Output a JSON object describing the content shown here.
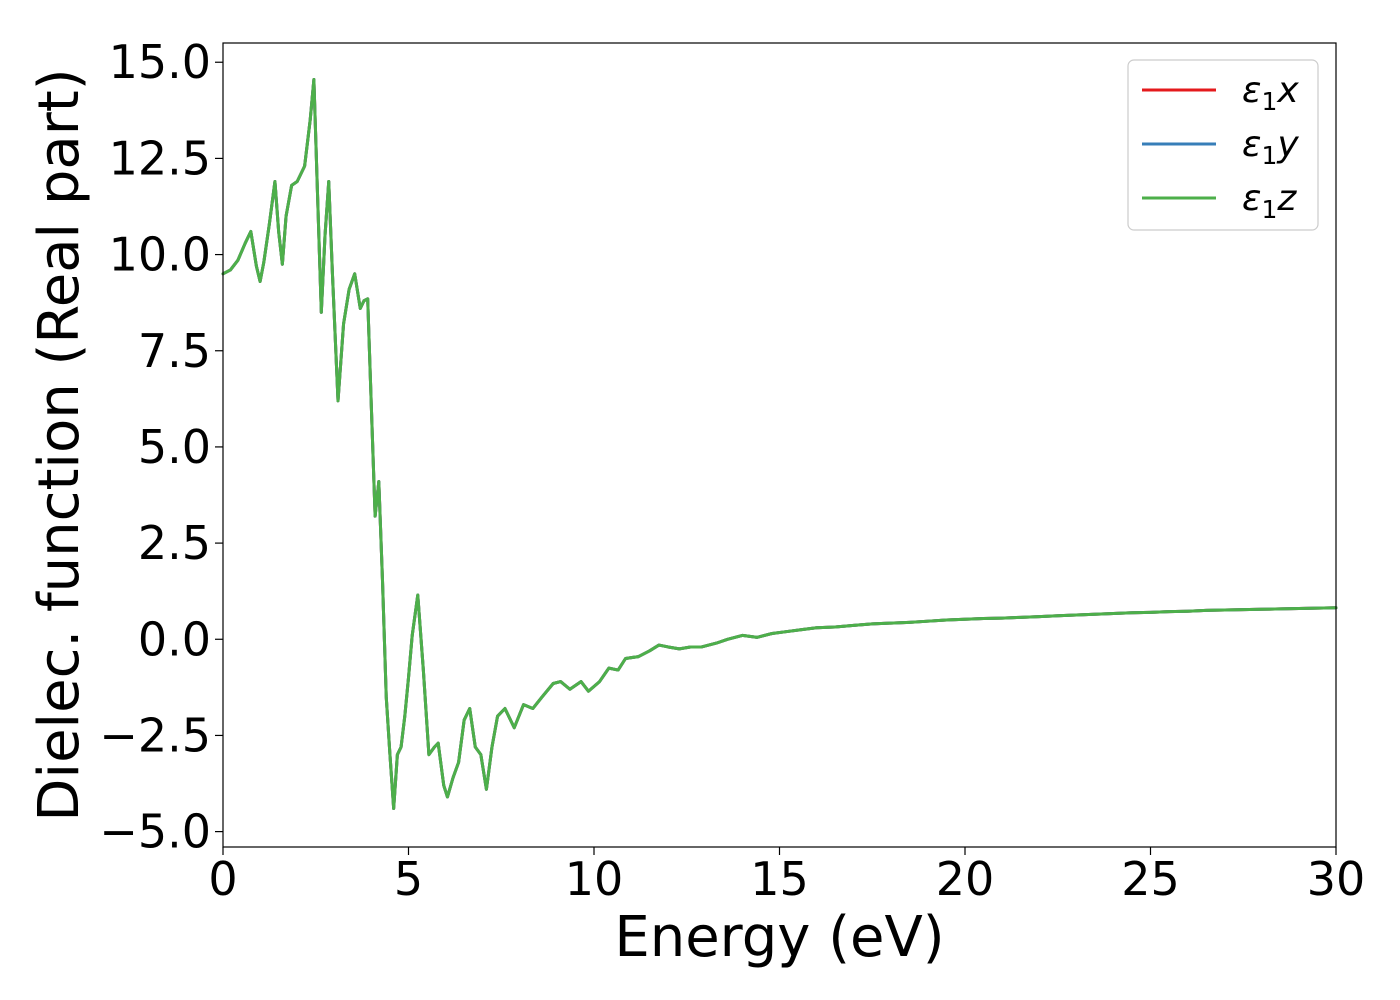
{
  "chart_data": {
    "type": "line",
    "xlabel": "Energy (eV)",
    "ylabel": "Dielec. function (Real part)",
    "xlim": [
      0,
      30
    ],
    "ylim": [
      -5.4,
      15.5
    ],
    "xticks": [
      0,
      5,
      10,
      15,
      20,
      25,
      30
    ],
    "xtick_labels": [
      "0",
      "5",
      "10",
      "15",
      "20",
      "25",
      "30"
    ],
    "yticks": [
      -5.0,
      -2.5,
      0.0,
      2.5,
      5.0,
      7.5,
      10.0,
      12.5,
      15.0
    ],
    "ytick_labels": [
      "−5.0",
      "−2.5",
      "0.0",
      "2.5",
      "5.0",
      "7.5",
      "10.0",
      "12.5",
      "15.0"
    ],
    "grid": false,
    "legend_position": "top-right",
    "legend": [
      {
        "symbol": "ε",
        "sub": "1",
        "axis": "x"
      },
      {
        "symbol": "ε",
        "sub": "1",
        "axis": "y"
      },
      {
        "symbol": "ε",
        "sub": "1",
        "axis": "z"
      }
    ],
    "colors": [
      "#e41a1c",
      "#377eb8",
      "#4daf4a"
    ],
    "x": [
      0,
      0.2,
      0.4,
      0.6,
      0.75,
      0.9,
      1.0,
      1.1,
      1.25,
      1.4,
      1.5,
      1.6,
      1.7,
      1.85,
      2.0,
      2.2,
      2.35,
      2.45,
      2.55,
      2.65,
      2.75,
      2.85,
      2.95,
      3.1,
      3.25,
      3.4,
      3.55,
      3.7,
      3.8,
      3.9,
      4.0,
      4.1,
      4.2,
      4.3,
      4.4,
      4.5,
      4.6,
      4.7,
      4.8,
      4.9,
      5.0,
      5.1,
      5.25,
      5.4,
      5.55,
      5.7,
      5.8,
      5.95,
      6.05,
      6.2,
      6.35,
      6.5,
      6.65,
      6.8,
      6.95,
      7.1,
      7.25,
      7.4,
      7.6,
      7.85,
      8.1,
      8.35,
      8.6,
      8.9,
      9.1,
      9.35,
      9.65,
      9.85,
      10.15,
      10.4,
      10.65,
      10.85,
      11.2,
      11.5,
      11.75,
      12.0,
      12.3,
      12.6,
      12.9,
      13.3,
      13.6,
      14.0,
      14.4,
      14.8,
      15.2,
      15.6,
      16.0,
      16.5,
      17.0,
      17.5,
      18.0,
      18.5,
      19.0,
      19.5,
      20.0,
      20.5,
      21.0,
      21.5,
      22.0,
      22.5,
      23.0,
      23.5,
      24.0,
      24.5,
      25.0,
      25.5,
      26.0,
      26.5,
      27.0,
      27.5,
      28.0,
      28.5,
      29.0,
      29.5,
      30.0
    ],
    "series": [
      {
        "name": "",
        "values": [
          9.5,
          9.6,
          9.85,
          10.3,
          10.6,
          9.7,
          9.3,
          9.8,
          10.8,
          11.9,
          10.6,
          9.75,
          11.0,
          11.8,
          11.9,
          12.3,
          13.5,
          14.55,
          11.5,
          8.5,
          10.5,
          11.9,
          9.5,
          6.2,
          8.2,
          9.1,
          9.5,
          8.6,
          8.8,
          8.85,
          6.0,
          3.2,
          4.1,
          1.5,
          -1.5,
          -3.0,
          -4.4,
          -3.0,
          -2.8,
          -2.0,
          -1.0,
          0.1,
          1.15,
          -0.8,
          -3.0,
          -2.8,
          -2.7,
          -3.8,
          -4.1,
          -3.6,
          -3.2,
          -2.1,
          -1.8,
          -2.8,
          -3.0,
          -3.9,
          -2.8,
          -2.0,
          -1.8,
          -2.3,
          -1.7,
          -1.8,
          -1.5,
          -1.15,
          -1.1,
          -1.3,
          -1.1,
          -1.35,
          -1.1,
          -0.75,
          -0.8,
          -0.5,
          -0.45,
          -0.3,
          -0.15,
          -0.2,
          -0.25,
          -0.2,
          -0.2,
          -0.1,
          0.0,
          0.1,
          0.05,
          0.15,
          0.2,
          0.25,
          0.3,
          0.32,
          0.36,
          0.4,
          0.42,
          0.44,
          0.47,
          0.5,
          0.52,
          0.54,
          0.55,
          0.57,
          0.59,
          0.61,
          0.63,
          0.65,
          0.67,
          0.69,
          0.7,
          0.72,
          0.73,
          0.75,
          0.76,
          0.77,
          0.78,
          0.79,
          0.8,
          0.81,
          0.82
        ]
      },
      {
        "name": "",
        "values": [
          9.5,
          9.6,
          9.85,
          10.3,
          10.6,
          9.7,
          9.3,
          9.8,
          10.8,
          11.9,
          10.6,
          9.75,
          11.0,
          11.8,
          11.9,
          12.3,
          13.5,
          14.55,
          11.5,
          8.5,
          10.5,
          11.9,
          9.5,
          6.2,
          8.2,
          9.1,
          9.5,
          8.6,
          8.8,
          8.85,
          6.0,
          3.2,
          4.1,
          1.5,
          -1.5,
          -3.0,
          -4.4,
          -3.0,
          -2.8,
          -2.0,
          -1.0,
          0.1,
          1.15,
          -0.8,
          -3.0,
          -2.8,
          -2.7,
          -3.8,
          -4.1,
          -3.6,
          -3.2,
          -2.1,
          -1.8,
          -2.8,
          -3.0,
          -3.9,
          -2.8,
          -2.0,
          -1.8,
          -2.3,
          -1.7,
          -1.8,
          -1.5,
          -1.15,
          -1.1,
          -1.3,
          -1.1,
          -1.35,
          -1.1,
          -0.75,
          -0.8,
          -0.5,
          -0.45,
          -0.3,
          -0.15,
          -0.2,
          -0.25,
          -0.2,
          -0.2,
          -0.1,
          0.0,
          0.1,
          0.05,
          0.15,
          0.2,
          0.25,
          0.3,
          0.32,
          0.36,
          0.4,
          0.42,
          0.44,
          0.47,
          0.5,
          0.52,
          0.54,
          0.55,
          0.57,
          0.59,
          0.61,
          0.63,
          0.65,
          0.67,
          0.69,
          0.7,
          0.72,
          0.73,
          0.75,
          0.76,
          0.77,
          0.78,
          0.79,
          0.8,
          0.81,
          0.82
        ]
      },
      {
        "name": "",
        "values": [
          9.5,
          9.6,
          9.85,
          10.3,
          10.6,
          9.7,
          9.3,
          9.8,
          10.8,
          11.9,
          10.6,
          9.75,
          11.0,
          11.8,
          11.9,
          12.3,
          13.5,
          14.55,
          11.5,
          8.5,
          10.5,
          11.9,
          9.5,
          6.2,
          8.2,
          9.1,
          9.5,
          8.6,
          8.8,
          8.85,
          6.0,
          3.2,
          4.1,
          1.5,
          -1.5,
          -3.0,
          -4.4,
          -3.0,
          -2.8,
          -2.0,
          -1.0,
          0.1,
          1.15,
          -0.8,
          -3.0,
          -2.8,
          -2.7,
          -3.8,
          -4.1,
          -3.6,
          -3.2,
          -2.1,
          -1.8,
          -2.8,
          -3.0,
          -3.9,
          -2.8,
          -2.0,
          -1.8,
          -2.3,
          -1.7,
          -1.8,
          -1.5,
          -1.15,
          -1.1,
          -1.3,
          -1.1,
          -1.35,
          -1.1,
          -0.75,
          -0.8,
          -0.5,
          -0.45,
          -0.3,
          -0.15,
          -0.2,
          -0.25,
          -0.2,
          -0.2,
          -0.1,
          0.0,
          0.1,
          0.05,
          0.15,
          0.2,
          0.25,
          0.3,
          0.32,
          0.36,
          0.4,
          0.42,
          0.44,
          0.47,
          0.5,
          0.52,
          0.54,
          0.55,
          0.57,
          0.59,
          0.61,
          0.63,
          0.65,
          0.67,
          0.69,
          0.7,
          0.72,
          0.73,
          0.75,
          0.76,
          0.77,
          0.78,
          0.79,
          0.8,
          0.81,
          0.82
        ]
      }
    ]
  }
}
